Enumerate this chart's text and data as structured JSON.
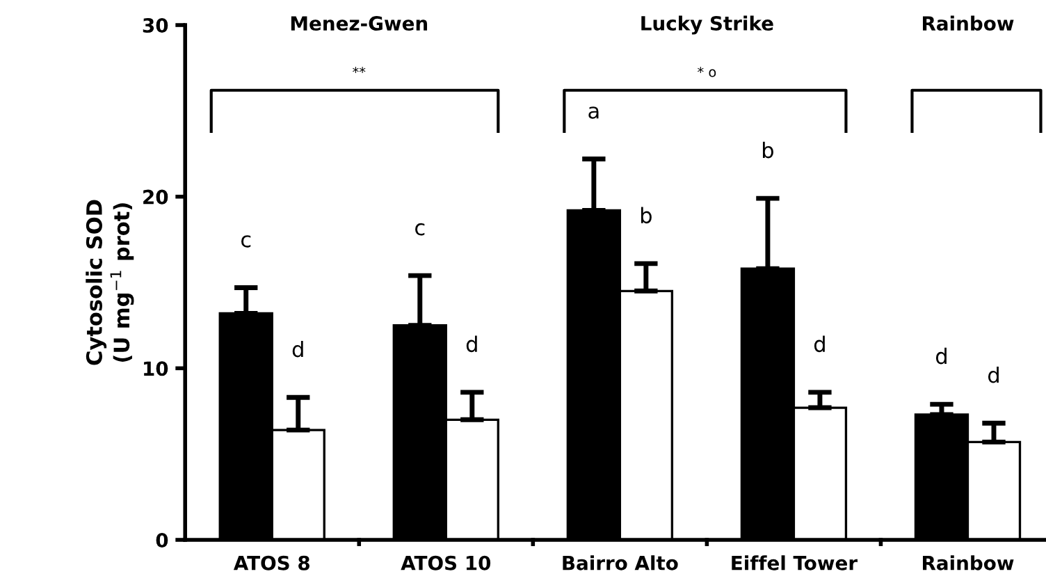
{
  "chart_data": {
    "type": "bar",
    "ylabel": "Cytosolic SOD\n(U mg$^{−1}$ prot)",
    "categories": [
      "ATOS 8",
      "ATOS 10",
      "Bairro Alto",
      "Eiffel Tower",
      "Rainbow"
    ],
    "series": [
      {
        "color": "#000000",
        "values": [
          13.2,
          12.5,
          19.2,
          15.8,
          7.3
        ],
        "errors": [
          1.5,
          2.9,
          3.0,
          4.1,
          0.6
        ]
      },
      {
        "color": "#ffffff",
        "values": [
          6.4,
          7.0,
          14.5,
          7.7,
          5.7
        ],
        "errors": [
          1.9,
          1.6,
          1.6,
          0.9,
          1.1
        ]
      }
    ],
    "ylim": [
      0,
      30
    ],
    "yticks": [
      0,
      10,
      20,
      30
    ],
    "grid": false,
    "legend": false,
    "annotations": [
      "Menez-Gwen",
      "Lucky Strike",
      "Rainbow",
      "**",
      "* o",
      "c",
      "d",
      "c",
      "d",
      "a",
      "b",
      "b",
      "d",
      "d",
      "d"
    ]
  }
}
